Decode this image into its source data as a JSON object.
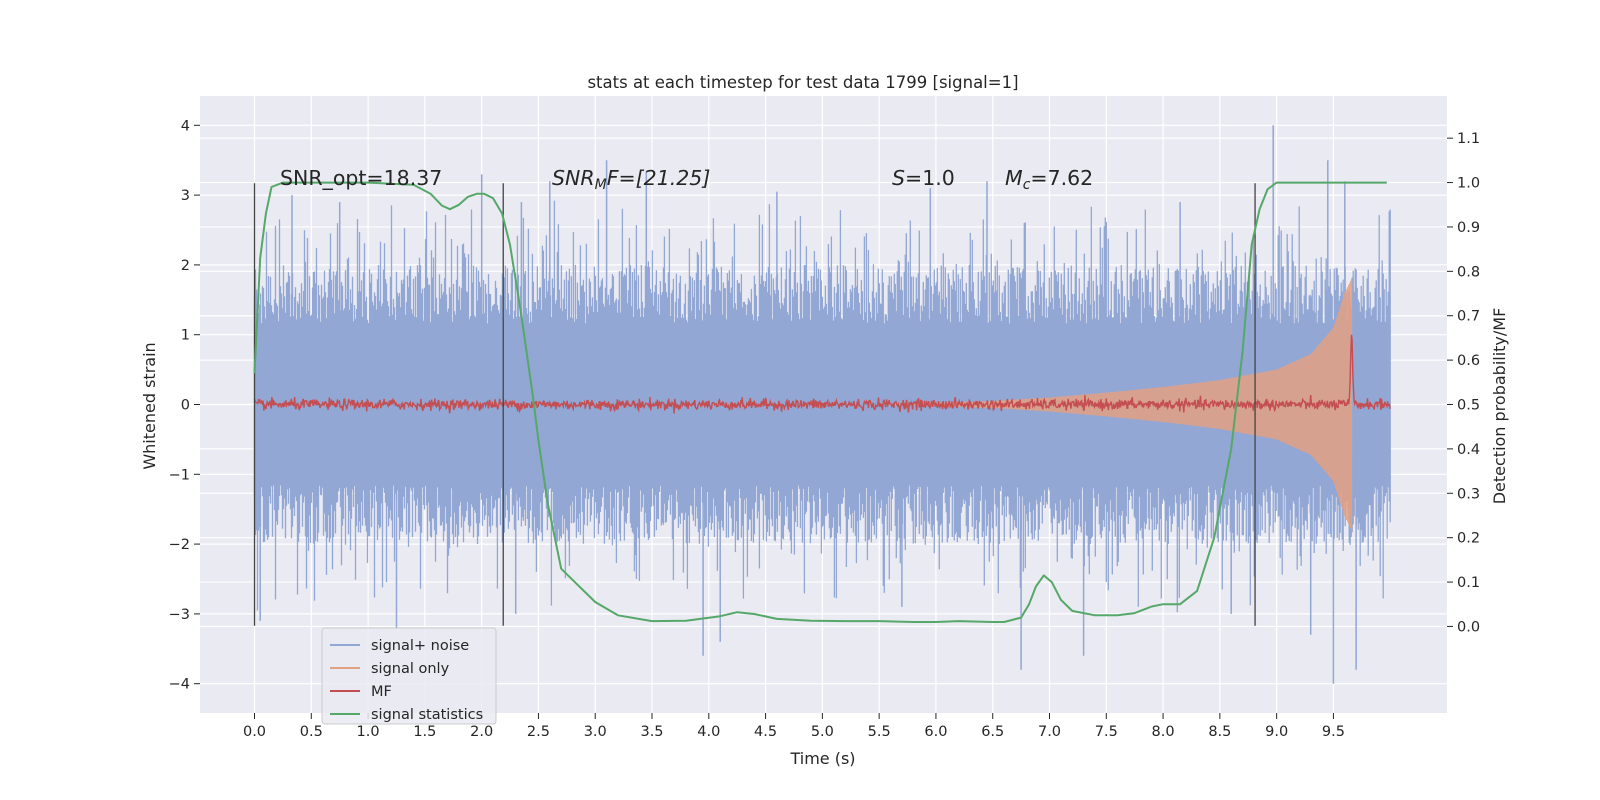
{
  "chart_data": {
    "type": "line",
    "title": "stats at each timestep for test data 1799 [signal=1]",
    "xlabel": "Time (s)",
    "ylabel_left": "Whitened strain",
    "ylabel_right": "Detection probability/MF",
    "xlim": [
      -0.48,
      10.5
    ],
    "ylim_left": [
      -4.42,
      4.42
    ],
    "ylim_right": [
      -0.195,
      1.195
    ],
    "x_ticks": [
      0.0,
      0.5,
      1.0,
      1.5,
      2.0,
      2.5,
      3.0,
      3.5,
      4.0,
      4.5,
      5.0,
      5.5,
      6.0,
      6.5,
      7.0,
      7.5,
      8.0,
      8.5,
      9.0,
      9.5
    ],
    "x_tick_labels": [
      "0.0",
      "0.5",
      "1.0",
      "1.5",
      "2.0",
      "2.5",
      "3.0",
      "3.5",
      "4.0",
      "4.5",
      "5.0",
      "5.5",
      "6.0",
      "6.5",
      "7.0",
      "7.5",
      "8.0",
      "8.5",
      "9.0",
      "9.5"
    ],
    "y_left_ticks": [
      -4,
      -3,
      -2,
      -1,
      0,
      1,
      2,
      3,
      4
    ],
    "y_left_tick_labels": [
      "−4",
      "−3",
      "−2",
      "−1",
      "0",
      "1",
      "2",
      "3",
      "4"
    ],
    "y_right_ticks": [
      0.0,
      0.1,
      0.2,
      0.3,
      0.4,
      0.5,
      0.6,
      0.7,
      0.8,
      0.9,
      1.0,
      1.1
    ],
    "y_right_tick_labels": [
      "0.0",
      "0.1",
      "0.2",
      "0.3",
      "0.4",
      "0.5",
      "0.6",
      "0.7",
      "0.8",
      "0.9",
      "1.0",
      "1.1"
    ],
    "grid": true,
    "legend_placement": "lower-left",
    "annotations": {
      "snr_opt": "SNR_opt=18.37",
      "snr_mf_base": "SNR",
      "snr_mf_sub": "M",
      "snr_mf_rest": "F=[21.25]",
      "s_base": "S",
      "s_rest": "=1.0",
      "mc_base": "M",
      "mc_sub": "c",
      "mc_rest": "=7.62"
    },
    "vertical_markers_x": [
      0.0,
      2.19,
      8.81
    ],
    "vertical_marker_range": [
      -3.17,
      3.17
    ],
    "series": [
      {
        "name": "signal+ noise",
        "axis": "left",
        "color": "#92a7d3",
        "x_range": [
          0.0,
          10.0
        ],
        "noise_envelope": 2.0,
        "peaks_top": [
          [
            0.33,
            3.0
          ],
          [
            0.75,
            2.9
          ],
          [
            2.0,
            3.3
          ],
          [
            2.35,
            2.9
          ],
          [
            2.6,
            3.2
          ],
          [
            3.1,
            3.5
          ],
          [
            3.45,
            3.35
          ],
          [
            4.6,
            3.05
          ],
          [
            5.95,
            3.1
          ],
          [
            6.45,
            3.2
          ],
          [
            8.15,
            2.9
          ],
          [
            8.97,
            4.0
          ],
          [
            9.45,
            3.5
          ],
          [
            9.6,
            3.2
          ]
        ],
        "peaks_bottom": [
          [
            0.05,
            -3.1
          ],
          [
            1.25,
            -3.2
          ],
          [
            2.3,
            -3.0
          ],
          [
            3.95,
            -3.6
          ],
          [
            4.1,
            -3.4
          ],
          [
            5.7,
            -2.9
          ],
          [
            6.75,
            -3.8
          ],
          [
            7.3,
            -3.6
          ],
          [
            8.6,
            -3.0
          ],
          [
            9.3,
            -3.3
          ],
          [
            9.5,
            -4.0
          ],
          [
            9.7,
            -3.8
          ]
        ]
      },
      {
        "name": "signal only",
        "axis": "left",
        "color": "#e3a083",
        "x_range": [
          5.5,
          9.66
        ],
        "amplitude_points": [
          [
            5.5,
            0.0
          ],
          [
            6.5,
            0.05
          ],
          [
            7.0,
            0.1
          ],
          [
            7.5,
            0.17
          ],
          [
            8.0,
            0.25
          ],
          [
            8.5,
            0.35
          ],
          [
            9.0,
            0.5
          ],
          [
            9.3,
            0.72
          ],
          [
            9.5,
            1.1
          ],
          [
            9.6,
            1.6
          ],
          [
            9.66,
            1.8
          ]
        ]
      },
      {
        "name": "MF",
        "axis": "right",
        "color": "#c44e52",
        "x_range": [
          0.0,
          10.0
        ],
        "baseline": 0.5,
        "spike": [
          9.66,
          0.66
        ]
      },
      {
        "name": "signal statistics",
        "axis": "right",
        "color": "#55a868",
        "x": [
          0.0,
          0.05,
          0.1,
          0.15,
          0.25,
          0.5,
          1.0,
          1.4,
          1.55,
          1.65,
          1.72,
          1.8,
          1.88,
          1.96,
          2.02,
          2.1,
          2.18,
          2.25,
          2.35,
          2.45,
          2.5,
          2.58,
          2.7,
          2.8,
          3.0,
          3.2,
          3.5,
          3.8,
          3.95,
          4.1,
          4.25,
          4.4,
          4.6,
          4.9,
          5.2,
          5.5,
          5.8,
          6.0,
          6.2,
          6.5,
          6.6,
          6.75,
          6.82,
          6.88,
          6.95,
          7.02,
          7.1,
          7.2,
          7.4,
          7.6,
          7.75,
          7.9,
          8.0,
          8.15,
          8.3,
          8.45,
          8.6,
          8.7,
          8.78,
          8.85,
          8.92,
          9.0,
          9.1,
          9.3,
          9.6,
          9.97
        ],
        "y": [
          0.57,
          0.83,
          0.93,
          0.99,
          1.0,
          1.0,
          1.0,
          0.995,
          0.975,
          0.948,
          0.94,
          0.95,
          0.968,
          0.975,
          0.975,
          0.965,
          0.93,
          0.86,
          0.7,
          0.52,
          0.42,
          0.28,
          0.13,
          0.105,
          0.055,
          0.025,
          0.012,
          0.013,
          0.018,
          0.023,
          0.032,
          0.028,
          0.017,
          0.013,
          0.012,
          0.012,
          0.01,
          0.01,
          0.012,
          0.01,
          0.01,
          0.02,
          0.05,
          0.09,
          0.115,
          0.1,
          0.06,
          0.035,
          0.025,
          0.025,
          0.03,
          0.045,
          0.05,
          0.05,
          0.08,
          0.2,
          0.4,
          0.62,
          0.86,
          0.94,
          0.985,
          1.0,
          1.0,
          1.0,
          1.0,
          1.0
        ]
      }
    ]
  }
}
